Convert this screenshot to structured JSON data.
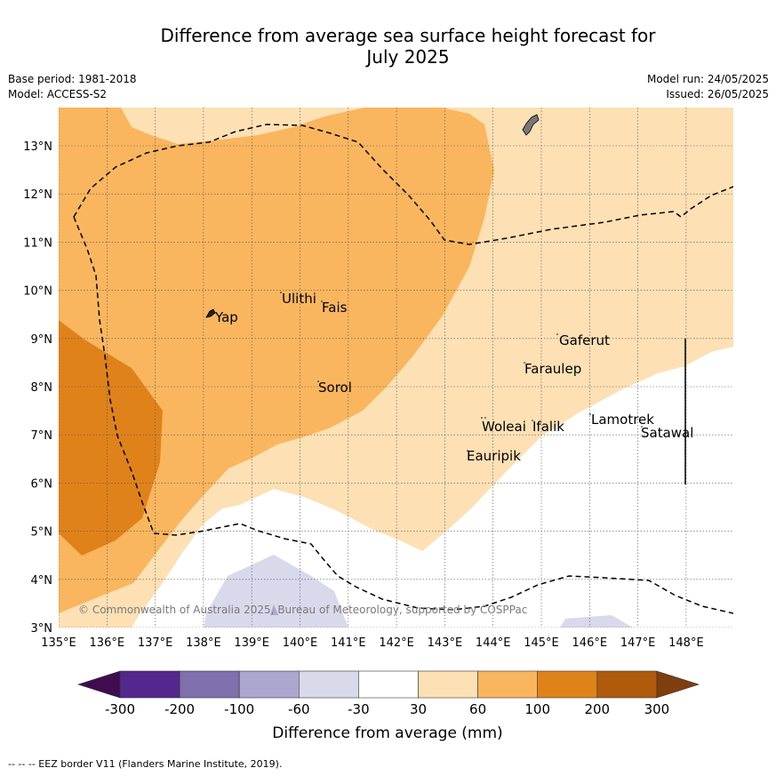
{
  "title_line1": "Difference from average sea surface height forecast for",
  "title_line2": "July 2025",
  "base_period": "Base period: 1981-2018",
  "model": "Model: ACCESS-S2",
  "model_run": "Model run: 24/05/2025",
  "issued": "Issued: 26/05/2025",
  "copyright": "© Commonwealth of Australia 2025, Bureau of Meteorology, supported by COSPPac",
  "footer": "-- -- -- EEZ border V11 (Flanders Marine Institute, 2019).",
  "map": {
    "lon_range": [
      135,
      149
    ],
    "lat_range": [
      3,
      13.8
    ],
    "x_ticks": [
      "135°E",
      "136°E",
      "137°E",
      "138°E",
      "139°E",
      "140°E",
      "141°E",
      "142°E",
      "143°E",
      "144°E",
      "145°E",
      "146°E",
      "147°E",
      "148°E"
    ],
    "y_ticks": [
      "3°N",
      "4°N",
      "5°N",
      "6°N",
      "7°N",
      "8°N",
      "9°N",
      "10°N",
      "11°N",
      "12°N",
      "13°N"
    ],
    "places": [
      "Ulithi",
      "Fais",
      "Yap",
      "Gaferut",
      "Faraulep",
      "Sorol",
      "Lamotrek",
      "Woleai",
      "Ifalik",
      "Satawal",
      "Eauripik"
    ]
  },
  "colorbar": {
    "label": "Difference from average (mm)",
    "ticks": [
      "-300",
      "-200",
      "-100",
      "-60",
      "-30",
      "30",
      "60",
      "100",
      "200",
      "300"
    ],
    "colors": [
      "#54278f",
      "#8070ad",
      "#aca7d0",
      "#d9d9ec",
      "#ffffff",
      "#fde0b4",
      "#f9b65e",
      "#e0821a",
      "#b05a0c"
    ],
    "under_color": "#3f0d4f",
    "over_color": "#7f3e0e"
  }
}
